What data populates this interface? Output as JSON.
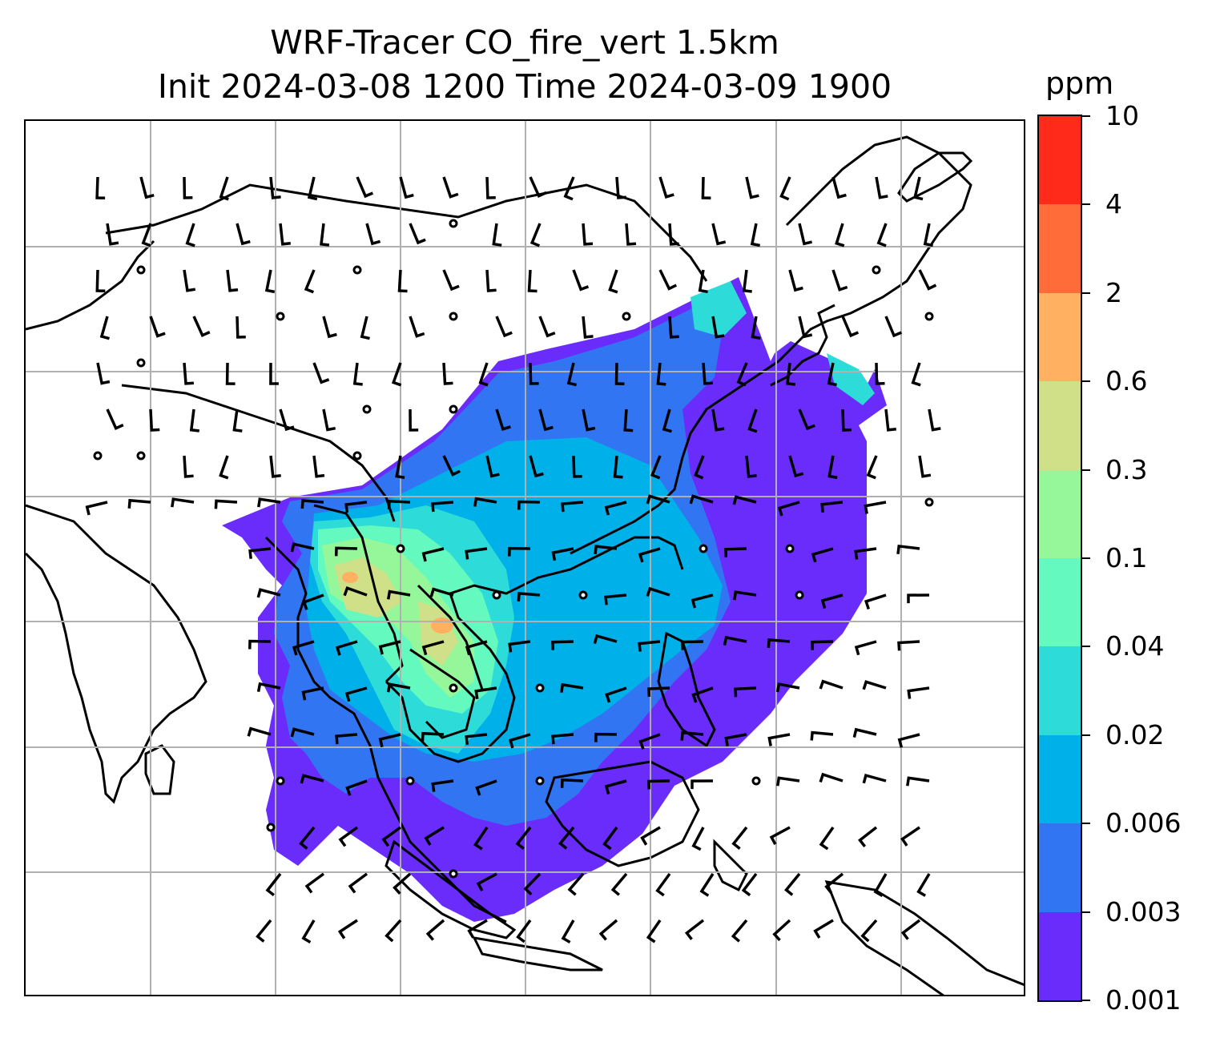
{
  "title": {
    "line1": "WRF-Tracer CO_fire_vert 1.5km",
    "line2": "Init 2024-03-08 1200 Time 2024-03-09 1900"
  },
  "colorbar": {
    "unit": "ppm",
    "levels": [
      "10",
      "4",
      "2",
      "0.6",
      "0.3",
      "0.1",
      "0.04",
      "0.02",
      "0.006",
      "0.003",
      "0.001"
    ],
    "colors": [
      "#ff2a1a",
      "#ff6c3a",
      "#ffb060",
      "#cfe088",
      "#96f79a",
      "#64f9be",
      "#2ddcd8",
      "#00b1e9",
      "#3275f2",
      "#6a2cfb"
    ]
  },
  "map": {
    "gridlines": true,
    "background_color": "#ffffff",
    "coastline_color": "#000000",
    "gridline_color": "#b0b0b0"
  }
}
